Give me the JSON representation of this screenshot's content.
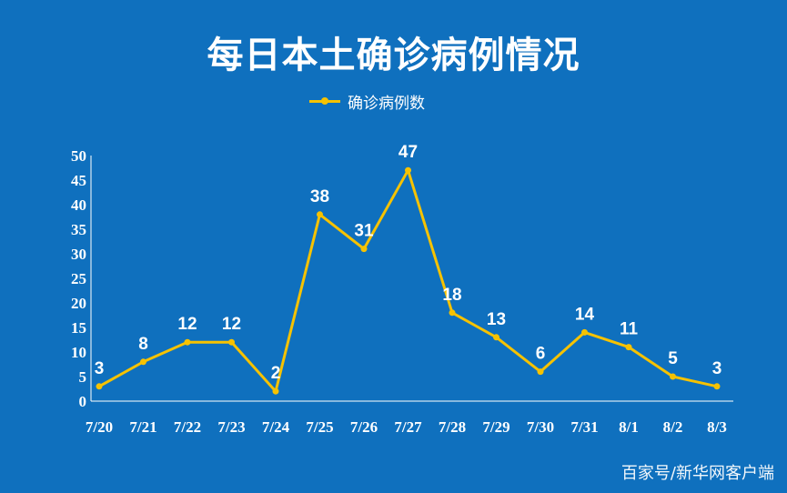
{
  "title": "每日本土确诊病例情况",
  "watermark": "百家号/新华网客户端",
  "legend": {
    "label": "确诊病例数"
  },
  "colors": {
    "background": "#0f70be",
    "series": "#f6c200",
    "text": "#ffffff"
  },
  "chart_data": {
    "type": "line",
    "title": "每日本土确诊病例情况",
    "categories": [
      "7/20",
      "7/21",
      "7/22",
      "7/23",
      "7/24",
      "7/25",
      "7/26",
      "7/27",
      "7/28",
      "7/29",
      "7/30",
      "7/31",
      "8/1",
      "8/2",
      "8/3"
    ],
    "series": [
      {
        "name": "确诊病例数",
        "values": [
          3,
          8,
          12,
          12,
          2,
          38,
          31,
          47,
          18,
          13,
          6,
          14,
          11,
          5,
          3
        ]
      }
    ],
    "y_ticks": [
      0,
      5,
      10,
      15,
      20,
      25,
      30,
      35,
      40,
      45,
      50
    ],
    "ylim": [
      0,
      50
    ],
    "grid": false,
    "legend_position": "top-center",
    "data_labels": true
  }
}
